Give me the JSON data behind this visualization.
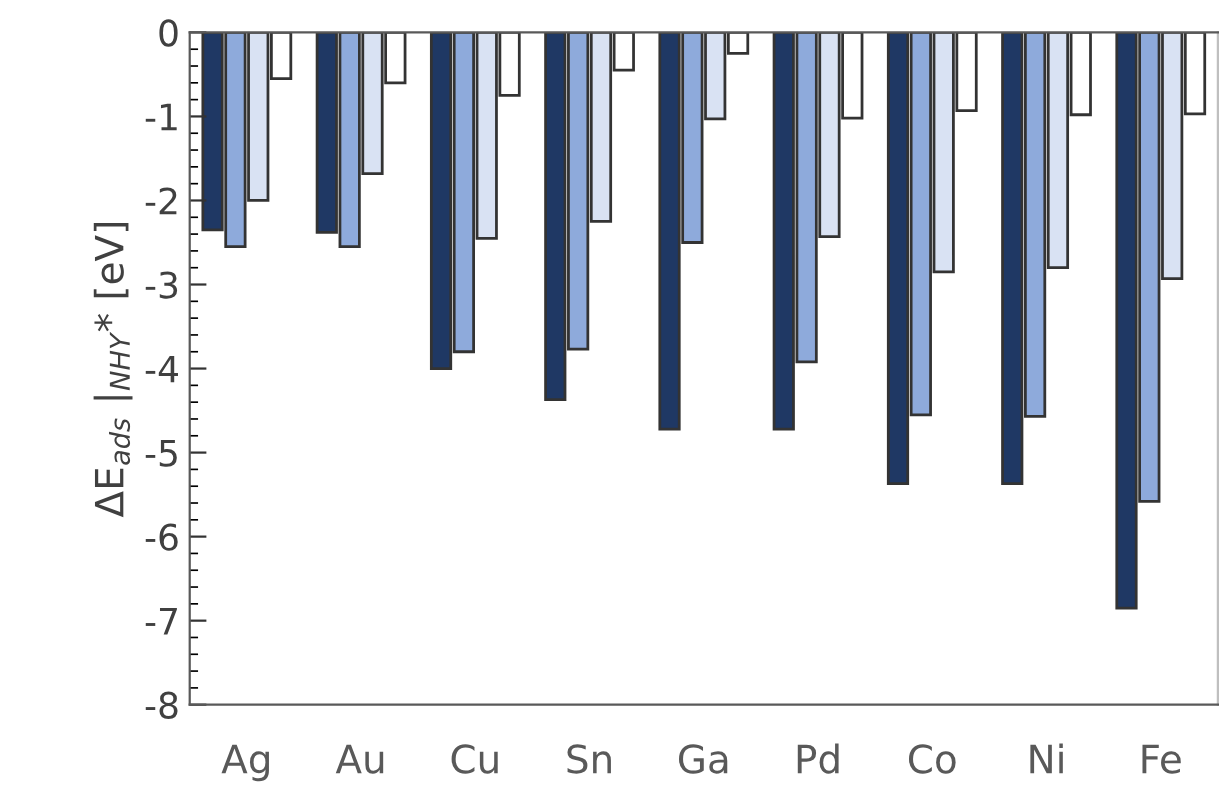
{
  "chart_data": {
    "type": "bar",
    "ylabel": "ΔE$_{ads}$ |$_{NHY}$* [eV]",
    "categories": [
      "Ag",
      "Au",
      "Cu",
      "Sn",
      "Ga",
      "Pd",
      "Co",
      "Ni",
      "Fe"
    ],
    "series": [
      {
        "color": "#1f3864",
        "values": [
          -2.35,
          -2.38,
          -4.0,
          -4.37,
          -4.72,
          -4.72,
          -5.37,
          -5.37,
          -6.85
        ]
      },
      {
        "color": "#8eaadb",
        "values": [
          -2.55,
          -2.55,
          -3.8,
          -3.77,
          -2.5,
          -3.92,
          -4.55,
          -4.57,
          -5.58
        ]
      },
      {
        "color": "#d9e2f3",
        "values": [
          -2.0,
          -1.68,
          -2.45,
          -2.25,
          -1.03,
          -2.43,
          -2.85,
          -2.8,
          -2.93
        ]
      },
      {
        "color": "#ffffff",
        "values": [
          -0.55,
          -0.6,
          -0.75,
          -0.45,
          -0.25,
          -1.02,
          -0.93,
          -0.98,
          -0.97
        ]
      }
    ],
    "ylim": [
      -8,
      0
    ],
    "yticks": [
      -8,
      -7,
      -6,
      -5,
      -4,
      -3,
      -2,
      -1,
      0
    ],
    "grid": false,
    "legend": false
  }
}
